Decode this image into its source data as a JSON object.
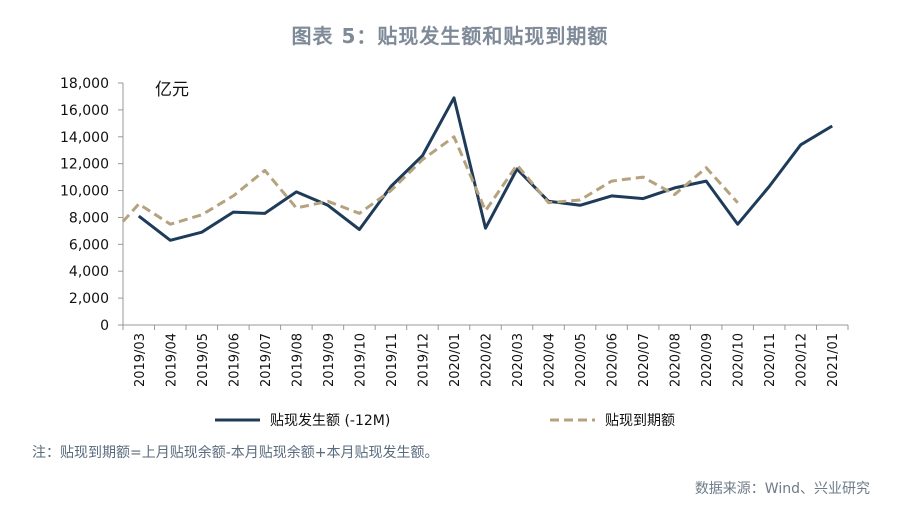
{
  "chart_data": {
    "type": "line",
    "title": "图表 5：贴现发生额和贴现到期额",
    "unit_label": "亿元",
    "ylim": [
      0,
      18000
    ],
    "yticks": [
      0,
      2000,
      4000,
      6000,
      8000,
      10000,
      12000,
      14000,
      16000,
      18000
    ],
    "ytick_labels": [
      "0",
      "2,000",
      "4,000",
      "6,000",
      "8,000",
      "10,000",
      "12,000",
      "14,000",
      "16,000",
      "18,000"
    ],
    "categories": [
      "2019/03",
      "2019/04",
      "2019/05",
      "2019/06",
      "2019/07",
      "2019/08",
      "2019/09",
      "2019/10",
      "2019/11",
      "2019/12",
      "2020/01",
      "2020/02",
      "2020/03",
      "2020/04",
      "2020/05",
      "2020/06",
      "2020/07",
      "2020/08",
      "2020/09",
      "2020/10",
      "2020/11",
      "2020/12",
      "2021/01"
    ],
    "series": [
      {
        "name": "贴现发生额 (-12M)",
        "style": "solid",
        "color": "#1f3b5a",
        "values": [
          8100,
          6300,
          6900,
          8400,
          8300,
          9900,
          8900,
          7100,
          10300,
          12600,
          16900,
          7200,
          11600,
          9200,
          8900,
          9600,
          9400,
          10200,
          10700,
          7500,
          10300,
          13400,
          14800
        ]
      },
      {
        "name": "贴现到期额",
        "style": "dashed",
        "color": "#b5a27e",
        "lead_in_value": 7700,
        "values": [
          9000,
          7500,
          8200,
          9600,
          11500,
          8700,
          9200,
          8300,
          10000,
          12300,
          14000,
          8500,
          11900,
          9100,
          9300,
          10700,
          11000,
          9700,
          11700,
          9100,
          null,
          null,
          null
        ]
      }
    ]
  },
  "note": "注：贴现到期额=上月贴现余额-本月贴现余额+本月贴现发生额。",
  "source": "数据来源：Wind、兴业研究"
}
